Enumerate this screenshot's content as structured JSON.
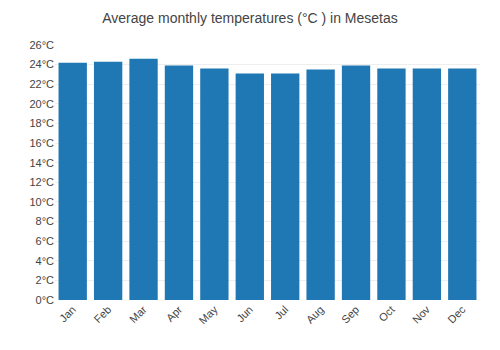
{
  "chart_data": {
    "type": "bar",
    "title": "Average monthly temperatures (°C ) in Mesetas",
    "categories": [
      "Jan",
      "Feb",
      "Mar",
      "Apr",
      "May",
      "Jun",
      "Jul",
      "Aug",
      "Sep",
      "Oct",
      "Nov",
      "Dec"
    ],
    "values": [
      24.2,
      24.3,
      24.6,
      23.9,
      23.6,
      23.1,
      23.1,
      23.5,
      23.9,
      23.6,
      23.6,
      23.6
    ],
    "ylim": [
      0,
      26
    ],
    "yticks": [
      {
        "value": 0,
        "label": "0°C"
      },
      {
        "value": 2,
        "label": "2°C"
      },
      {
        "value": 4,
        "label": "4°C"
      },
      {
        "value": 6,
        "label": "6°C"
      },
      {
        "value": 8,
        "label": "8°C"
      },
      {
        "value": 10,
        "label": "10°C"
      },
      {
        "value": 12,
        "label": "12°C"
      },
      {
        "value": 14,
        "label": "14°C"
      },
      {
        "value": 16,
        "label": "16°C"
      },
      {
        "value": 18,
        "label": "18°C"
      },
      {
        "value": 20,
        "label": "20°C"
      },
      {
        "value": 22,
        "label": "22°C"
      },
      {
        "value": 24,
        "label": "24°C"
      },
      {
        "value": 26,
        "label": "26°C"
      }
    ],
    "grid": true
  }
}
